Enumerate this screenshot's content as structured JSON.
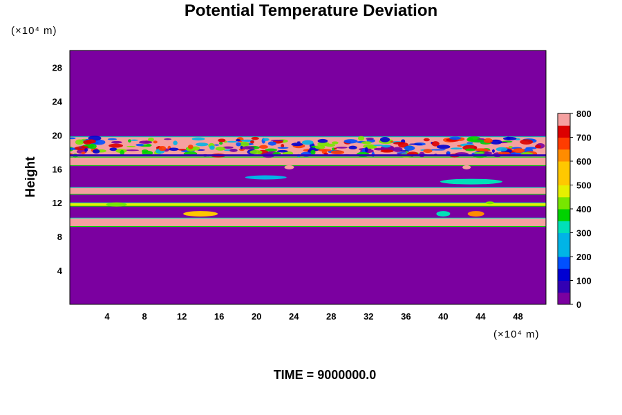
{
  "chart_data": {
    "type": "heatmap",
    "title": "Potential Temperature Deviation",
    "ylabel": "Height",
    "y_unit": "(×10⁴ m)",
    "x_unit": "(×10⁴ m)",
    "xlim": [
      0,
      51
    ],
    "ylim": [
      0,
      30
    ],
    "x_ticks": [
      "4",
      "8",
      "12",
      "16",
      "20",
      "24",
      "28",
      "32",
      "36",
      "40",
      "44",
      "48"
    ],
    "y_ticks": [
      "4",
      "8",
      "12",
      "16",
      "20",
      "24",
      "28"
    ],
    "colorbar": {
      "range": [
        0,
        800
      ],
      "ticks": [
        "0",
        "100",
        "200",
        "300",
        "400",
        "500",
        "600",
        "700",
        "800"
      ]
    },
    "bands": [
      {
        "y0": 0,
        "y1": 9.2,
        "value": 0
      },
      {
        "y0": 9.2,
        "y1": 10.2,
        "value": 800
      },
      {
        "y0": 13.0,
        "y1": 13.8,
        "value": 800
      },
      {
        "y0": 16.4,
        "y1": 17.4,
        "value": 800
      },
      {
        "y0": 17.4,
        "y1": 19.8,
        "value": 800,
        "turbulent": true
      },
      {
        "y0": 11.6,
        "y1": 12.0,
        "value": 500
      },
      {
        "y0": 19.8,
        "y1": 30,
        "value": 0
      }
    ],
    "time_label": "TIME = 9000000.0"
  },
  "colors": {
    "background": "#7b00a0",
    "max": "#f5a0a0"
  }
}
